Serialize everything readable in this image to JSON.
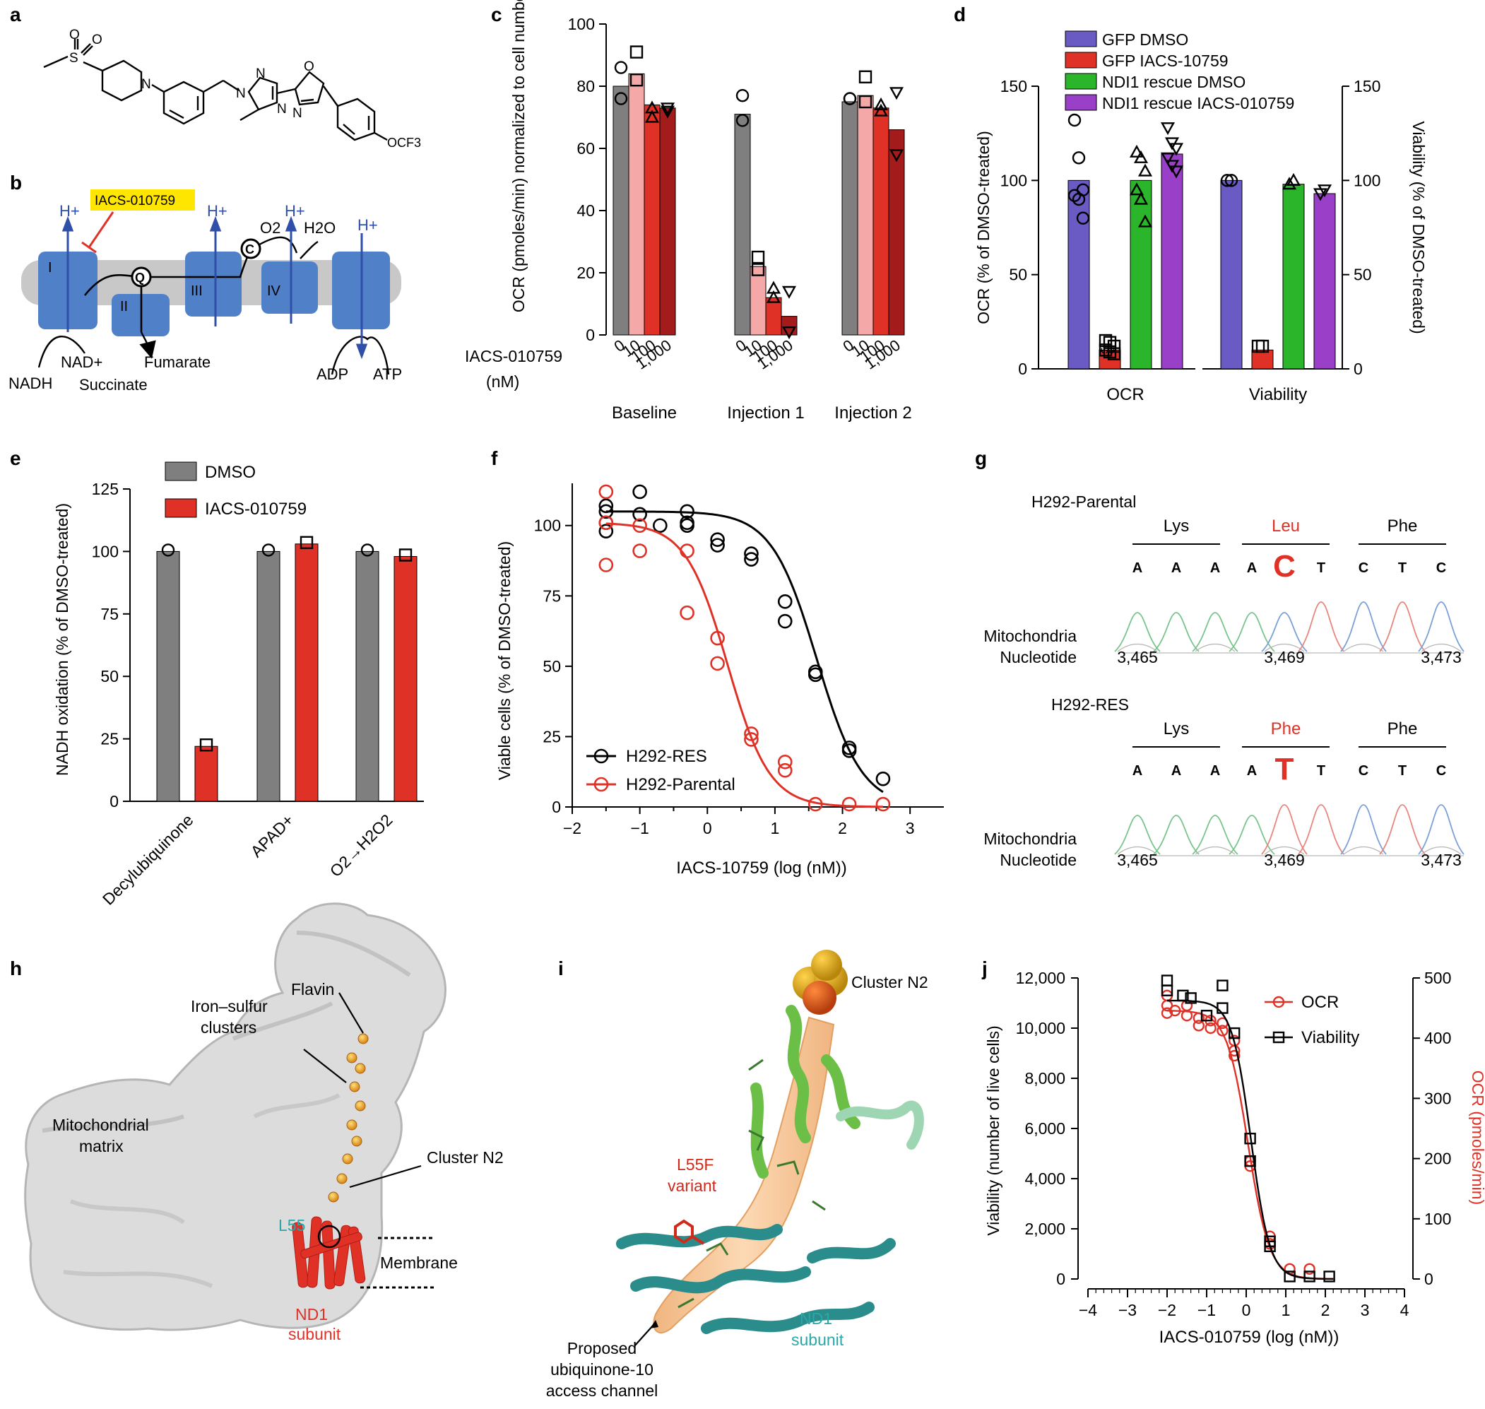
{
  "panel_letters": [
    "a",
    "b",
    "c",
    "d",
    "e",
    "f",
    "g",
    "h",
    "i",
    "j"
  ],
  "colors": {
    "grey": "#7f7f7f",
    "pink": "#f4a9a8",
    "red": "#e03127",
    "darkred": "#a31b1b",
    "blue_purple": "#6a5bc4",
    "green": "#2bb52b",
    "purple": "#9a3fc8",
    "membrane_blue": "#4f80c8",
    "membrane_grey": "#c8c8c8",
    "highlight": "#ffe600",
    "teal": "#2aa8a8",
    "black": "#000000"
  },
  "panel_a": {
    "substituent_label": "OCF3",
    "atoms": [
      "O",
      "O",
      "S",
      "N",
      "N",
      "N",
      "N",
      "O",
      "N"
    ]
  },
  "panel_b": {
    "inhibitor": "IACS-010759",
    "complexes": [
      "I",
      "II",
      "III",
      "IV"
    ],
    "labels": {
      "q": "Q",
      "c": "C",
      "o2": "O2",
      "h2o": "H2O",
      "nadh": "NADH",
      "nad": "NAD+",
      "succinate": "Succinate",
      "fumarate": "Fumarate",
      "adp": "ADP",
      "atp": "ATP",
      "proton": "H+"
    }
  },
  "chart_data": [
    {
      "panel": "c",
      "type": "bar",
      "ylabel": "OCR (pmoles/min) normalized to cell number",
      "ylim": [
        0,
        100
      ],
      "yticks": [
        0,
        20,
        40,
        60,
        80,
        100
      ],
      "x_axis_label": "IACS-010759 (nM)",
      "doses": [
        "0",
        "10",
        "100",
        "1,000"
      ],
      "groups": [
        "Baseline",
        "Injection 1",
        "Injection 2"
      ],
      "series": [
        {
          "name": "0",
          "values": [
            80,
            71,
            75
          ]
        },
        {
          "name": "10",
          "values": [
            84,
            22,
            77
          ]
        },
        {
          "name": "100",
          "values": [
            74,
            12,
            73
          ]
        },
        {
          "name": "1,000",
          "values": [
            73,
            6,
            66
          ]
        }
      ],
      "points": [
        [
          [
            86,
            76
          ],
          [
            91,
            82
          ],
          [
            70,
            73
          ],
          [
            72,
            73
          ]
        ],
        [
          [
            77,
            69
          ],
          [
            25,
            21
          ],
          [
            15,
            12
          ],
          [
            14,
            1
          ]
        ],
        [
          [
            76,
            76
          ],
          [
            83,
            75
          ],
          [
            74,
            72
          ],
          [
            78,
            58
          ]
        ]
      ]
    },
    {
      "panel": "d",
      "type": "bar",
      "ylabel_left": "OCR (% of DMSO-treated)",
      "ylabel_right": "Viability (% of DMSO-treated)",
      "ylim": [
        0,
        150
      ],
      "yticks": [
        0,
        50,
        100,
        150
      ],
      "groups": [
        "OCR",
        "Viability"
      ],
      "significance": "***",
      "legend": [
        "GFP DMSO",
        "GFP IACS-10759",
        "NDI1 rescue DMSO",
        "NDI1 rescue IACS-010759"
      ],
      "series": [
        {
          "name": "GFP DMSO",
          "values": [
            100,
            100
          ]
        },
        {
          "name": "GFP IACS-10759",
          "values": [
            10,
            10
          ]
        },
        {
          "name": "NDI1 rescue DMSO",
          "values": [
            100,
            98
          ]
        },
        {
          "name": "NDI1 rescue IACS-010759",
          "values": [
            114,
            93
          ]
        }
      ],
      "points": [
        [
          [
            132,
            112,
            95,
            92,
            90,
            80
          ],
          [
            100,
            100
          ]
        ],
        [
          [
            15,
            14,
            12,
            10,
            9,
            8
          ],
          [
            12,
            12
          ]
        ],
        [
          [
            115,
            112,
            105,
            95,
            90,
            78
          ],
          [
            98,
            100
          ]
        ],
        [
          [
            128,
            120,
            117,
            112,
            108,
            105
          ],
          [
            93,
            95
          ]
        ]
      ]
    },
    {
      "panel": "e",
      "type": "bar",
      "ylabel": "NADH oxidation (% of DMSO-treated)",
      "ylim": [
        0,
        125
      ],
      "yticks": [
        0,
        25,
        50,
        75,
        100,
        125
      ],
      "categories": [
        "Decylubiquinone",
        "APAD+",
        "O2→H2O2"
      ],
      "series": [
        {
          "name": "DMSO",
          "values": [
            100,
            100,
            100
          ]
        },
        {
          "name": "IACS-010759",
          "values": [
            22,
            103,
            98
          ]
        }
      ]
    },
    {
      "panel": "f",
      "type": "scatter",
      "xlabel": "IACS-10759 (log (nM))",
      "ylabel": "Viable cells (% of DMSO-treated)",
      "xlim": [
        -2,
        3.5
      ],
      "ylim": [
        0,
        115
      ],
      "xticks": [
        -2,
        -1,
        0,
        1,
        2,
        3
      ],
      "yticks": [
        0,
        25,
        50,
        75,
        100
      ],
      "series": [
        {
          "name": "H292-RES",
          "ic50_log": 1.62,
          "top": 105,
          "bottom": 0,
          "hill": 1.3,
          "x": [
            -1.5,
            -1.5,
            -1.5,
            -1.5,
            -1.0,
            -1.0,
            -0.7,
            -0.3,
            -0.3,
            -0.3,
            0.15,
            0.15,
            0.65,
            0.65,
            1.15,
            1.15,
            1.6,
            1.6,
            2.1,
            2.1,
            2.6
          ],
          "y": [
            107,
            105,
            101,
            98,
            112,
            104,
            100,
            105,
            101,
            100,
            95,
            93,
            90,
            88,
            73,
            66,
            48,
            47,
            21,
            20,
            10
          ]
        },
        {
          "name": "H292-Parental",
          "ic50_log": 0.3,
          "top": 101,
          "bottom": 0,
          "hill": 1.4,
          "x": [
            -1.5,
            -1.5,
            -1.5,
            -1.0,
            -1.0,
            -0.3,
            -0.3,
            0.15,
            0.15,
            0.65,
            0.65,
            1.15,
            1.15,
            1.6,
            2.1,
            2.6
          ],
          "y": [
            112,
            101,
            86,
            100,
            91,
            91,
            69,
            60,
            51,
            26,
            24,
            16,
            13,
            1,
            1,
            1
          ]
        }
      ]
    },
    {
      "panel": "j",
      "type": "scatter",
      "xlabel": "IACS-010759 (log (nM))",
      "ylabel_left": "Viability (number of live cells)",
      "ylabel_right": "OCR (pmoles/min)",
      "xlim": [
        -4,
        4
      ],
      "ylim_left": [
        0,
        12000
      ],
      "ylim_right": [
        0,
        500
      ],
      "xticks": [
        -4,
        -3,
        -2,
        -1,
        0,
        1,
        2,
        3,
        4
      ],
      "yticks_left": [
        "0",
        "2,000",
        "4,000",
        "6,000",
        "8,000",
        "10,000",
        "12,000"
      ],
      "yticks_right": [
        0,
        100,
        200,
        300,
        400,
        500
      ],
      "series": [
        {
          "name": "OCR",
          "ic50_log": 0.05,
          "top": 10700,
          "bottom": 0,
          "hill": 1.6,
          "x": [
            -2,
            -2,
            -2,
            -1.8,
            -1.5,
            -1.5,
            -1.2,
            -1.2,
            -0.9,
            -0.9,
            -0.6,
            -0.6,
            -0.3,
            -0.3,
            -0.3,
            0.1,
            0.1,
            0.6,
            0.6,
            1.1,
            1.6
          ],
          "y": [
            11300,
            10900,
            10600,
            10700,
            10900,
            10500,
            10400,
            10100,
            10300,
            10000,
            10200,
            9900,
            9500,
            9100,
            8900,
            4700,
            4500,
            1700,
            1400,
            400,
            400
          ]
        },
        {
          "name": "Viability",
          "ic50_log": 0.12,
          "top": 11100,
          "bottom": 0,
          "hill": 1.8,
          "x": [
            -2,
            -2,
            -1.6,
            -1.4,
            -1.0,
            -0.6,
            -0.6,
            -0.3,
            0.1,
            0.1,
            0.6,
            0.6,
            1.1,
            1.6,
            2.1
          ],
          "y": [
            11900,
            11500,
            11300,
            11200,
            10500,
            11700,
            10800,
            9800,
            5600,
            4700,
            1500,
            1300,
            100,
            100,
            100
          ]
        }
      ]
    }
  ],
  "panel_g": {
    "blocks": [
      {
        "name": "H292-Parental",
        "codons": [
          "Lys",
          "Leu",
          "Phe"
        ],
        "bases": [
          "A",
          "A",
          "A",
          "A",
          "C",
          "T",
          "C",
          "T",
          "C"
        ],
        "highlight_index": 4,
        "row_label_1": "Mitochondria",
        "row_label_2": "Nucleotide",
        "positions": [
          "3,465",
          "3,469",
          "3,473"
        ]
      },
      {
        "name": "H292-RES",
        "codons": [
          "Lys",
          "Phe",
          "Phe"
        ],
        "bases": [
          "A",
          "A",
          "A",
          "A",
          "T",
          "T",
          "C",
          "T",
          "C"
        ],
        "highlight_index": 4,
        "row_label_1": "Mitochondria",
        "row_label_2": "Nucleotide",
        "positions": [
          "3,465",
          "3,469",
          "3,473"
        ]
      }
    ]
  },
  "panel_h": {
    "labels": {
      "flavin": "Flavin",
      "iron_sulfur_1": "Iron–sulfur",
      "iron_sulfur_2": "clusters",
      "matrix_1": "Mitochondrial",
      "matrix_2": "matrix",
      "n2": "Cluster N2",
      "l55": "L55",
      "membrane": "Membrane",
      "nd1_1": "ND1",
      "nd1_2": "subunit"
    }
  },
  "panel_i": {
    "labels": {
      "n2": "Cluster N2",
      "l55f_1": "L55F",
      "l55f_2": "variant",
      "nd1_1": "ND1",
      "nd1_2": "subunit",
      "channel_1": "Proposed",
      "channel_2": "ubiquinone-10",
      "channel_3": "access channel"
    }
  }
}
